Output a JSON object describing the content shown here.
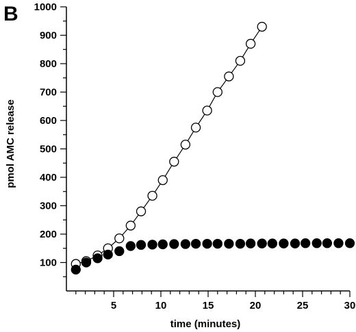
{
  "panel_label": "B",
  "chart_data": {
    "type": "scatter",
    "xlabel": "time (minutes)",
    "ylabel": "pmol AMC release",
    "xlim": [
      0,
      30
    ],
    "ylim": [
      0,
      1000
    ],
    "xticks": [
      5,
      10,
      15,
      20,
      25,
      30
    ],
    "yticks": [
      100,
      200,
      300,
      400,
      500,
      600,
      700,
      800,
      900,
      1000
    ],
    "grid": false,
    "legend": "none",
    "series": [
      {
        "marker": "open-circle",
        "line": true,
        "x": [
          1.0,
          2.1,
          3.3,
          4.4,
          5.6,
          6.8,
          7.9,
          9.1,
          10.2,
          11.4,
          12.6,
          13.7,
          14.9,
          16.0,
          17.2,
          18.4,
          19.5,
          20.7
        ],
        "y": [
          95,
          105,
          125,
          150,
          185,
          230,
          280,
          335,
          390,
          455,
          515,
          575,
          635,
          700,
          755,
          810,
          870,
          930
        ]
      },
      {
        "marker": "filled-circle",
        "line": false,
        "x": [
          1.0,
          2.1,
          3.3,
          4.4,
          5.6,
          6.8,
          7.9,
          9.1,
          10.2,
          11.4,
          12.6,
          13.7,
          14.9,
          16.0,
          17.2,
          18.4,
          19.5,
          20.7,
          21.8,
          23.0,
          24.2,
          25.3,
          26.5,
          27.6,
          28.8,
          30.0
        ],
        "y": [
          75,
          100,
          115,
          128,
          140,
          158,
          162,
          163,
          164,
          165,
          165,
          166,
          166,
          166,
          166,
          166,
          167,
          167,
          167,
          167,
          167,
          168,
          168,
          168,
          168,
          168
        ]
      }
    ]
  }
}
